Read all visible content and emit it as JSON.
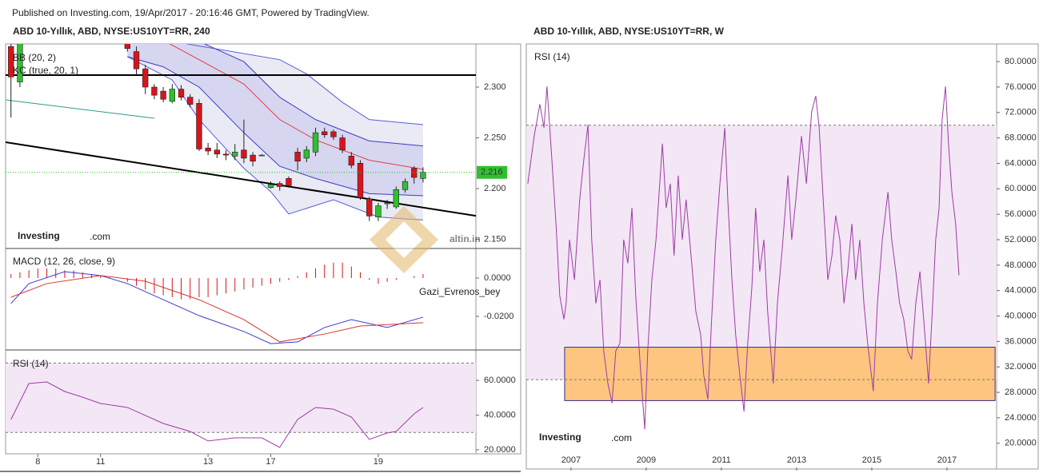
{
  "published": "Published on Investing.com, 19/Apr/2017 - 20:16:46 GMT, Powered by TradingView.",
  "logo": {
    "brand": "Investing",
    "suffix": ".com"
  },
  "watermarks": [
    "altin.in",
    "Gazi_Evrenos_bey"
  ],
  "chart_data": [
    {
      "type": "candlestick",
      "title": "ABD 10-Yıllık, ABD, NYSE:US10YT=RR, 240",
      "up_color": "#2fc02f",
      "down_color": "#d8141b",
      "x": [
        0,
        1,
        13,
        14,
        15,
        16,
        17,
        18,
        19,
        20,
        21,
        22,
        23,
        24,
        25,
        26,
        27,
        28,
        29,
        30,
        31,
        32,
        33,
        34,
        35,
        36,
        37,
        38,
        39,
        40,
        41,
        42,
        43,
        44,
        45,
        46
      ],
      "open": [
        2.34,
        2.305,
        2.343,
        2.335,
        2.318,
        2.3,
        2.296,
        2.286,
        2.298,
        2.29,
        2.284,
        2.24,
        2.238,
        2.234,
        2.232,
        2.238,
        2.233,
        2.233,
        2.201,
        2.205,
        2.21,
        2.236,
        2.23,
        2.236,
        2.256,
        2.256,
        2.25,
        2.232,
        2.225,
        2.19,
        2.172,
        2.185,
        2.182,
        2.199,
        2.22,
        2.21
      ],
      "high": [
        2.345,
        2.345,
        2.345,
        2.34,
        2.322,
        2.303,
        2.3,
        2.303,
        2.302,
        2.293,
        2.288,
        2.245,
        2.245,
        2.238,
        2.244,
        2.268,
        2.236,
        2.234,
        2.207,
        2.207,
        2.212,
        2.24,
        2.242,
        2.26,
        2.26,
        2.258,
        2.253,
        2.236,
        2.228,
        2.192,
        2.186,
        2.189,
        2.202,
        2.21,
        2.222,
        2.221
      ],
      "low": [
        2.27,
        2.3,
        2.335,
        2.312,
        2.293,
        2.288,
        2.285,
        2.284,
        2.287,
        2.28,
        2.237,
        2.233,
        2.23,
        2.228,
        2.228,
        2.225,
        2.222,
        2.232,
        2.2,
        2.198,
        2.201,
        2.218,
        2.226,
        2.232,
        2.25,
        2.248,
        2.235,
        2.22,
        2.189,
        2.168,
        2.168,
        2.18,
        2.18,
        2.196,
        2.205,
        2.206
      ],
      "close": [
        2.31,
        2.345,
        2.338,
        2.318,
        2.3,
        2.292,
        2.288,
        2.298,
        2.29,
        2.283,
        2.239,
        2.237,
        2.234,
        2.233,
        2.236,
        2.23,
        2.227,
        2.233,
        2.204,
        2.202,
        2.203,
        2.227,
        2.238,
        2.255,
        2.253,
        2.251,
        2.238,
        2.223,
        2.191,
        2.173,
        2.183,
        2.186,
        2.199,
        2.207,
        2.211,
        2.216
      ],
      "last": 2.216,
      "last_color": "#2fc02f",
      "indicators": [
        {
          "name": "BB (20, 2)",
          "fill": "#e6e6f3",
          "lines": [
            {
              "color": "#5a5ad8",
              "x": [
                13,
                20,
                30,
                33,
                37,
                40,
                46
              ],
              "values": [
                2.355,
                2.342,
                2.327,
                2.313,
                2.285,
                2.268,
                2.263
              ]
            },
            {
              "color": "#e04040",
              "x": [
                13,
                17,
                21,
                26,
                30,
                34,
                40,
                46
              ],
              "values": [
                2.36,
                2.346,
                2.327,
                2.303,
                2.268,
                2.248,
                2.228,
                2.219
              ]
            },
            {
              "color": "#5a5ad8",
              "x": [
                13,
                18,
                21,
                26,
                29,
                31,
                36,
                41,
                46
              ],
              "values": [
                2.33,
                2.307,
                2.268,
                2.22,
                2.197,
                2.175,
                2.189,
                2.172,
                2.169
              ]
            }
          ]
        },
        {
          "name": "KC (true, 20, 1)",
          "fill": "#d2d2ee",
          "lines": [
            {
              "color": "#3c3cc8",
              "x": [
                13,
                17,
                21,
                26,
                30,
                34,
                40,
                46
              ],
              "values": [
                2.37,
                2.36,
                2.345,
                2.325,
                2.29,
                2.268,
                2.247,
                2.242
              ]
            },
            {
              "color": "#3c3cc8",
              "x": [
                13,
                17,
                21,
                26,
                30,
                34,
                40,
                46
              ],
              "values": [
                2.33,
                2.32,
                2.3,
                2.255,
                2.222,
                2.21,
                2.195,
                2.193
              ]
            }
          ]
        }
      ],
      "trendlines": [
        {
          "color": "#000000",
          "x": [
            -0.6,
            51.9
          ],
          "values": [
            2.3118,
            2.3118
          ]
        },
        {
          "color": "#000000",
          "x": [
            -0.6,
            51.9
          ],
          "values": [
            2.2457,
            2.1732
          ]
        },
        {
          "color": "#2a9d8f",
          "x": [
            -0.6,
            16
          ],
          "values": [
            2.2874,
            2.2693
          ]
        }
      ],
      "xlim": [
        -0.6,
        51.9
      ],
      "ylim": [
        2.141,
        2.3425
      ],
      "xticks": [
        {
          "value": 3,
          "label": "8"
        },
        {
          "value": 10,
          "label": "11"
        },
        {
          "value": 22,
          "label": "13"
        },
        {
          "value": 29,
          "label": "17"
        },
        {
          "value": 41,
          "label": "19"
        }
      ],
      "yticks": [
        {
          "value": 2.15,
          "label": "2.150"
        },
        {
          "value": 2.2,
          "label": "2.200"
        },
        {
          "value": 2.25,
          "label": "2.250"
        },
        {
          "value": 2.3,
          "label": "2.300"
        }
      ]
    },
    {
      "type": "macd",
      "title": "MACD (12, 26, close, 9)",
      "histogram": {
        "color": "#d8141b",
        "x": [
          0,
          1,
          2,
          3,
          4,
          5,
          6,
          7,
          8,
          9,
          10,
          11,
          12,
          13,
          14,
          15,
          16,
          17,
          18,
          19,
          20,
          21,
          22,
          23,
          24,
          25,
          26,
          27,
          28,
          29,
          30,
          31,
          32,
          33,
          34,
          35,
          36,
          37,
          38,
          39,
          40,
          41,
          42,
          43,
          44,
          45,
          46
        ],
        "values": [
          0.002,
          0.003,
          0.004,
          0.005,
          0.005,
          0.005,
          0.004,
          0.004,
          0.003,
          0.002,
          0.001,
          0.0005,
          0.0,
          -0.002,
          -0.004,
          -0.006,
          -0.008,
          -0.009,
          -0.01,
          -0.011,
          -0.011,
          -0.01,
          -0.01,
          -0.009,
          -0.008,
          -0.007,
          -0.006,
          -0.005,
          -0.004,
          -0.003,
          -0.002,
          -0.001,
          0.001,
          0.003,
          0.005,
          0.007,
          0.008,
          0.008,
          0.006,
          0.003,
          -0.001,
          -0.003,
          -0.002,
          -0.001,
          0.0,
          0.001,
          0.002
        ]
      },
      "series": [
        {
          "color": "#3b3bd0",
          "x": [
            0,
            2,
            6,
            10,
            13,
            17,
            21,
            26,
            29,
            32,
            35,
            38,
            42,
            46
          ],
          "values": [
            -0.0133,
            -0.0029,
            0.0033,
            0.0013,
            -0.0029,
            -0.0113,
            -0.0196,
            -0.0279,
            -0.0342,
            -0.0333,
            -0.0258,
            -0.0217,
            -0.0258,
            -0.0204
          ]
        },
        {
          "color": "#e03030",
          "x": [
            0,
            4,
            10,
            15,
            21,
            26,
            30,
            35,
            39,
            46
          ],
          "values": [
            -0.01,
            -0.0029,
            0.0013,
            -0.0017,
            -0.0113,
            -0.0217,
            -0.0333,
            -0.0292,
            -0.025,
            -0.0233
          ]
        }
      ],
      "xlim": [
        -0.6,
        51.9
      ],
      "ylim": [
        -0.0375,
        0.0154
      ],
      "yticks": [
        {
          "value": -0.02,
          "label": "-0.0200"
        },
        {
          "value": 0,
          "label": "0.0000"
        }
      ]
    },
    {
      "type": "line",
      "title": "RSI (14)",
      "levels": [
        70,
        30
      ],
      "level_fill": "#f3e7f5",
      "series": [
        {
          "color": "#a03aa8",
          "x": [
            0,
            2,
            4,
            6,
            8,
            10,
            13,
            17,
            20,
            22,
            25,
            28,
            30,
            32,
            34,
            36,
            38,
            40,
            42,
            43,
            45,
            46
          ],
          "values": [
            37.5,
            58.2,
            59.1,
            53.6,
            50.3,
            46.7,
            44.4,
            35.2,
            30.6,
            25.1,
            26.9,
            26.9,
            21.4,
            37.5,
            44.4,
            43.4,
            38.9,
            26.0,
            29.7,
            30.6,
            40.7,
            44.4
          ]
        }
      ],
      "xlim": [
        -0.6,
        51.9
      ],
      "ylim": [
        17.7,
        76.6
      ],
      "yticks": [
        {
          "value": 20,
          "label": "20.0000"
        },
        {
          "value": 40,
          "label": "40.0000"
        },
        {
          "value": 60,
          "label": "60.0000"
        }
      ]
    },
    {
      "type": "line",
      "title": "ABD 10-Yıllık, ABD, NYSE:US10YT=RR, W",
      "panel_title": "RSI (14)",
      "levels": [
        70,
        30
      ],
      "level_fill": "#f3e7f5",
      "highlight": {
        "x": [
          2006.83,
          2018.28
        ],
        "y": [
          26.7,
          35.1
        ],
        "color": "#fdc57f",
        "border": "#3a2a8a"
      },
      "series": [
        {
          "color": "#a03aa8",
          "x": [
            2005.85,
            2006.02,
            2006.17,
            2006.28,
            2006.36,
            2006.49,
            2006.6,
            2006.7,
            2006.81,
            2006.87,
            2006.96,
            2007.09,
            2007.23,
            2007.34,
            2007.45,
            2007.55,
            2007.66,
            2007.77,
            2007.87,
            2007.98,
            2008.09,
            2008.19,
            2008.3,
            2008.4,
            2008.51,
            2008.62,
            2008.72,
            2008.83,
            2008.96,
            2009.04,
            2009.15,
            2009.26,
            2009.43,
            2009.53,
            2009.64,
            2009.74,
            2009.85,
            2009.96,
            2010.06,
            2010.21,
            2010.32,
            2010.45,
            2010.53,
            2010.64,
            2010.74,
            2010.85,
            2010.96,
            2011.09,
            2011.17,
            2011.28,
            2011.38,
            2011.49,
            2011.6,
            2011.7,
            2011.81,
            2011.91,
            2012.02,
            2012.13,
            2012.23,
            2012.38,
            2012.49,
            2012.62,
            2012.77,
            2012.87,
            2012.98,
            2013.13,
            2013.26,
            2013.4,
            2013.51,
            2013.6,
            2013.72,
            2013.83,
            2013.94,
            2014.04,
            2014.15,
            2014.26,
            2014.36,
            2014.47,
            2014.57,
            2014.68,
            2014.79,
            2014.89,
            2015.04,
            2015.15,
            2015.28,
            2015.43,
            2015.53,
            2015.64,
            2015.74,
            2015.85,
            2015.96,
            2016.06,
            2016.17,
            2016.28,
            2016.38,
            2016.51,
            2016.62,
            2016.7,
            2016.79,
            2016.87,
            2016.96,
            2017.04,
            2017.13,
            2017.23,
            2017.32
          ],
          "values": [
            60.8,
            68.3,
            73.3,
            69.6,
            76.1,
            64.6,
            54.5,
            43.2,
            39.5,
            42.0,
            52.0,
            45.7,
            58.3,
            64.6,
            70.1,
            52.0,
            42.0,
            45.7,
            34.5,
            29.4,
            26.3,
            34.5,
            35.7,
            52.0,
            48.3,
            57.0,
            43.2,
            33.2,
            22.2,
            34.5,
            45.7,
            52.0,
            67.1,
            57.0,
            60.8,
            49.5,
            62.1,
            52.0,
            58.3,
            48.3,
            40.7,
            37.0,
            30.7,
            26.9,
            39.5,
            52.0,
            60.8,
            69.6,
            58.3,
            45.7,
            37.0,
            30.7,
            25.0,
            35.7,
            44.5,
            57.0,
            47.0,
            52.0,
            40.7,
            29.4,
            42.0,
            50.8,
            62.1,
            52.0,
            58.3,
            68.3,
            60.8,
            72.1,
            74.6,
            69.6,
            57.0,
            45.7,
            49.5,
            55.8,
            52.0,
            42.0,
            47.0,
            54.5,
            45.7,
            52.0,
            42.0,
            35.7,
            28.2,
            42.0,
            52.0,
            59.5,
            52.0,
            47.0,
            42.0,
            39.5,
            34.5,
            33.2,
            42.0,
            47.0,
            39.5,
            29.4,
            42.0,
            52.0,
            57.0,
            70.8,
            76.1,
            67.1,
            59.5,
            54.5,
            46.4
          ]
        }
      ],
      "xlim": [
        2005.81,
        2018.32
      ],
      "ylim": [
        16.2,
        82.4
      ],
      "xticks": [
        2007,
        2009,
        2011,
        2013,
        2015,
        2017
      ],
      "yticks": [
        {
          "value": 20,
          "label": "20.0000"
        },
        {
          "value": 24,
          "label": "24.0000"
        },
        {
          "value": 28,
          "label": "28.0000"
        },
        {
          "value": 32,
          "label": "32.0000"
        },
        {
          "value": 36,
          "label": "36.0000"
        },
        {
          "value": 40,
          "label": "40.0000"
        },
        {
          "value": 44,
          "label": "44.0000"
        },
        {
          "value": 48,
          "label": "48.0000"
        },
        {
          "value": 52,
          "label": "52.0000"
        },
        {
          "value": 56,
          "label": "56.0000"
        },
        {
          "value": 60,
          "label": "60.0000"
        },
        {
          "value": 64,
          "label": "64.0000"
        },
        {
          "value": 68,
          "label": "68.0000"
        },
        {
          "value": 72,
          "label": "72.0000"
        },
        {
          "value": 76,
          "label": "76.0000"
        },
        {
          "value": 80,
          "label": "80.0000"
        }
      ]
    }
  ]
}
